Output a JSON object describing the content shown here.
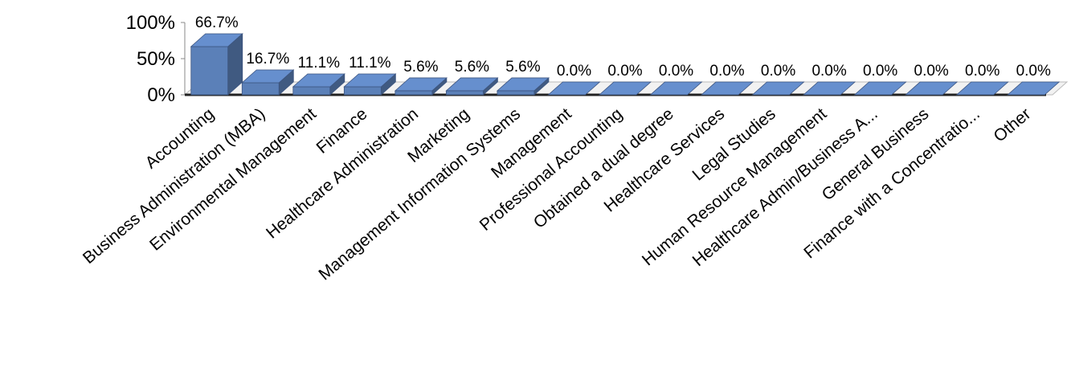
{
  "chart_data": {
    "type": "bar3d",
    "categories": [
      "Accounting",
      "Business Administration (MBA)",
      "Environmental Management",
      "Finance",
      "Healthcare Administration",
      "Marketing",
      "Management Information Systems",
      "Management",
      "Professional Accounting",
      "Obtained a dual degree",
      "Healthcare Services",
      "Legal Studies",
      "Human Resource Management",
      "Healthcare Admin/Business A...",
      "General Business",
      "Finance with a Concentratio...",
      "Other"
    ],
    "values": [
      66.7,
      16.7,
      11.1,
      11.1,
      5.6,
      5.6,
      5.6,
      0,
      0,
      0,
      0,
      0,
      0,
      0,
      0,
      0,
      0
    ],
    "value_labels": [
      "66.7%",
      "16.7%",
      "11.1%",
      "11.1%",
      "5.6%",
      "5.6%",
      "5.6%",
      "0.0%",
      "0.0%",
      "0.0%",
      "0.0%",
      "0.0%",
      "0.0%",
      "0.0%",
      "0.0%",
      "0.0%",
      "0.0%"
    ],
    "color": "#5b80b8",
    "ylim": [
      0,
      100
    ],
    "yticks": [
      {
        "value": 0,
        "label": "0%"
      },
      {
        "value": 50,
        "label": "50%"
      },
      {
        "value": 100,
        "label": "100%"
      }
    ]
  }
}
